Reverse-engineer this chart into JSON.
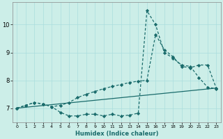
{
  "xlabel": "Humidex (Indice chaleur)",
  "bg_color": "#cceee8",
  "grid_color": "#aadddd",
  "line_color": "#1a6b6b",
  "xlim": [
    -0.5,
    23.5
  ],
  "ylim": [
    6.5,
    10.8
  ],
  "yticks": [
    7,
    8,
    9,
    10
  ],
  "xticks": [
    0,
    1,
    2,
    3,
    4,
    5,
    6,
    7,
    8,
    9,
    10,
    11,
    12,
    13,
    14,
    15,
    16,
    17,
    18,
    19,
    20,
    21,
    22,
    23
  ],
  "line1_x": [
    0,
    1,
    2,
    3,
    4,
    5,
    6,
    7,
    8,
    9,
    10,
    11,
    12,
    13,
    14,
    15,
    16,
    17,
    18,
    19,
    20,
    21,
    22,
    23
  ],
  "line1_y": [
    7.0,
    7.1,
    7.2,
    7.15,
    7.05,
    6.85,
    6.72,
    6.72,
    6.78,
    6.78,
    6.72,
    6.78,
    6.72,
    6.75,
    6.82,
    10.5,
    10.0,
    9.0,
    8.8,
    8.55,
    8.5,
    8.1,
    7.75,
    7.7
  ],
  "line2_x": [
    0,
    1,
    2,
    3,
    4,
    5,
    6,
    7,
    8,
    9,
    10,
    11,
    12,
    13,
    14,
    15,
    16,
    17,
    18,
    19,
    20,
    21,
    22,
    23
  ],
  "line2_y": [
    7.0,
    7.1,
    7.2,
    7.15,
    7.05,
    7.1,
    7.2,
    7.38,
    7.5,
    7.6,
    7.7,
    7.78,
    7.85,
    7.92,
    7.97,
    8.0,
    9.65,
    9.1,
    8.85,
    8.5,
    8.45,
    8.55,
    8.55,
    7.72
  ],
  "line3_x": [
    0,
    23
  ],
  "line3_y": [
    7.0,
    7.72
  ]
}
